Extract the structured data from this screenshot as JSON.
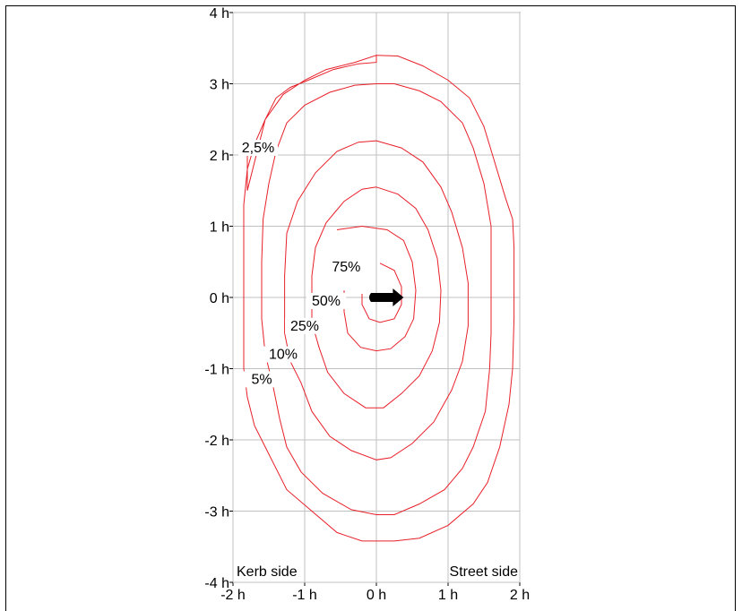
{
  "chart_data": {
    "type": "contour",
    "xlim": [
      -2,
      2
    ],
    "ylim": [
      -4,
      4
    ],
    "x_ticks": [
      {
        "value": -2,
        "label": "-2 h"
      },
      {
        "value": -1,
        "label": "-1 h"
      },
      {
        "value": 0,
        "label": "0 h"
      },
      {
        "value": 1,
        "label": "1 h"
      },
      {
        "value": 2,
        "label": "2 h"
      }
    ],
    "y_ticks": [
      {
        "value": 4,
        "label": "4 h"
      },
      {
        "value": 3,
        "label": "3 h"
      },
      {
        "value": 2,
        "label": "2 h"
      },
      {
        "value": 1,
        "label": "1 h"
      },
      {
        "value": 0,
        "label": "0 h"
      },
      {
        "value": -1,
        "label": "-1 h"
      },
      {
        "value": -2,
        "label": "-2 h"
      },
      {
        "value": -3,
        "label": "-3 h"
      },
      {
        "value": -4,
        "label": "-4 h"
      }
    ],
    "grid": true,
    "side_labels": {
      "left": "Kerb side",
      "right": "Street side"
    },
    "contour_color": "#e8202a",
    "contours": [
      {
        "level": "2,5%",
        "label_at": [
          -1.65,
          2.05
        ],
        "points": [
          [
            0,
            3.4
          ],
          [
            0.3,
            3.39
          ],
          [
            0.65,
            3.25
          ],
          [
            1.0,
            3.05
          ],
          [
            1.3,
            2.8
          ],
          [
            1.5,
            2.4
          ],
          [
            1.62,
            2.0
          ],
          [
            1.8,
            1.4
          ],
          [
            1.9,
            1.1
          ],
          [
            1.92,
            0.7
          ],
          [
            1.92,
            -0.3
          ],
          [
            1.9,
            -1.0
          ],
          [
            1.85,
            -1.5
          ],
          [
            1.72,
            -2.1
          ],
          [
            1.55,
            -2.6
          ],
          [
            1.35,
            -2.9
          ],
          [
            1.0,
            -3.2
          ],
          [
            0.6,
            -3.38
          ],
          [
            0.25,
            -3.42
          ],
          [
            -0.2,
            -3.42
          ],
          [
            -0.55,
            -3.3
          ],
          [
            -0.9,
            -3.0
          ],
          [
            -1.25,
            -2.7
          ],
          [
            -1.5,
            -2.2
          ],
          [
            -1.7,
            -1.8
          ],
          [
            -1.8,
            -1.4
          ],
          [
            -1.85,
            -1.0
          ]
        ]
      },
      {
        "level": "5%",
        "label_at": [
          -1.6,
          -1.2
        ],
        "points": [
          [
            -1.8,
            2.0
          ],
          [
            -1.8,
            1.5
          ],
          [
            -1.6,
            2.3
          ],
          [
            -1.55,
            2.5
          ],
          [
            -1.4,
            2.8
          ],
          [
            -1.2,
            2.95
          ],
          [
            -0.95,
            3.05
          ],
          [
            -0.6,
            3.2
          ],
          [
            -0.25,
            3.28
          ],
          [
            0,
            3.3
          ],
          [
            0,
            3.4
          ],
          [
            -0.3,
            3.3
          ],
          [
            -0.7,
            3.2
          ],
          [
            -1.0,
            3.05
          ],
          [
            -1.3,
            2.85
          ],
          [
            -1.55,
            2.5
          ],
          [
            -1.7,
            2.15
          ],
          [
            -1.8,
            1.8
          ],
          [
            -1.85,
            1.3
          ],
          [
            -1.85,
            0.6
          ],
          [
            -1.85,
            -0.5
          ],
          [
            -1.85,
            -1.0
          ]
        ]
      },
      {
        "level": "10%",
        "label_at": [
          -1.3,
          -0.85
        ],
        "points": [
          [
            0,
            3.0
          ],
          [
            0.25,
            3.0
          ],
          [
            0.6,
            2.9
          ],
          [
            0.9,
            2.75
          ],
          [
            1.2,
            2.45
          ],
          [
            1.35,
            2.1
          ],
          [
            1.5,
            1.6
          ],
          [
            1.6,
            1.0
          ],
          [
            1.6,
            0.5
          ],
          [
            1.6,
            -0.5
          ],
          [
            1.58,
            -1.0
          ],
          [
            1.52,
            -1.6
          ],
          [
            1.35,
            -2.1
          ],
          [
            1.2,
            -2.4
          ],
          [
            0.95,
            -2.7
          ],
          [
            0.6,
            -2.9
          ],
          [
            0.25,
            -3.05
          ],
          [
            0,
            -3.05
          ],
          [
            -0.35,
            -2.98
          ],
          [
            -0.75,
            -2.75
          ],
          [
            -1.05,
            -2.45
          ],
          [
            -1.25,
            -2.1
          ],
          [
            -1.35,
            -1.7
          ],
          [
            -1.45,
            -1.2
          ],
          [
            -1.55,
            -0.8
          ],
          [
            -1.6,
            -0.3
          ],
          [
            -1.6,
            0.5
          ],
          [
            -1.58,
            1.1
          ],
          [
            -1.5,
            1.6
          ],
          [
            -1.4,
            2.05
          ],
          [
            -1.25,
            2.45
          ],
          [
            -1.0,
            2.7
          ],
          [
            -0.65,
            2.88
          ],
          [
            -0.3,
            2.98
          ],
          [
            0,
            3.0
          ]
        ]
      },
      {
        "level": "25%",
        "label_at": [
          -1.0,
          -0.45
        ],
        "points": [
          [
            0,
            2.2
          ],
          [
            0.35,
            2.1
          ],
          [
            0.65,
            1.9
          ],
          [
            0.9,
            1.55
          ],
          [
            1.05,
            1.2
          ],
          [
            1.2,
            0.7
          ],
          [
            1.28,
            0.2
          ],
          [
            1.28,
            -0.4
          ],
          [
            1.2,
            -0.9
          ],
          [
            1.05,
            -1.3
          ],
          [
            0.8,
            -1.75
          ],
          [
            0.5,
            -2.05
          ],
          [
            0.2,
            -2.25
          ],
          [
            0,
            -2.28
          ],
          [
            -0.35,
            -2.15
          ],
          [
            -0.65,
            -1.95
          ],
          [
            -0.9,
            -1.6
          ],
          [
            -1.05,
            -1.2
          ],
          [
            -1.2,
            -0.9
          ],
          [
            -1.28,
            -0.5
          ],
          [
            -1.28,
            0.3
          ],
          [
            -1.25,
            0.9
          ],
          [
            -1.1,
            1.35
          ],
          [
            -0.85,
            1.75
          ],
          [
            -0.55,
            2.05
          ],
          [
            -0.25,
            2.18
          ],
          [
            0,
            2.2
          ]
        ]
      },
      {
        "level": "50%",
        "label_at": [
          -0.7,
          -0.1
        ],
        "points": [
          [
            0,
            1.55
          ],
          [
            0.3,
            1.45
          ],
          [
            0.55,
            1.25
          ],
          [
            0.72,
            0.95
          ],
          [
            0.85,
            0.55
          ],
          [
            0.9,
            0.1
          ],
          [
            0.88,
            -0.35
          ],
          [
            0.78,
            -0.75
          ],
          [
            0.6,
            -1.1
          ],
          [
            0.35,
            -1.35
          ],
          [
            0.1,
            -1.55
          ],
          [
            -0.15,
            -1.55
          ],
          [
            -0.45,
            -1.35
          ],
          [
            -0.68,
            -1.05
          ],
          [
            -0.8,
            -0.7
          ],
          [
            -0.9,
            -0.35
          ],
          [
            -0.9,
            0.3
          ],
          [
            -0.85,
            0.7
          ],
          [
            -0.7,
            1.05
          ],
          [
            -0.45,
            1.35
          ],
          [
            -0.2,
            1.52
          ],
          [
            0,
            1.55
          ]
        ]
      },
      {
        "level": "75%",
        "label_at": [
          -0.42,
          0.38
        ],
        "points": [
          [
            -0.55,
            0.95
          ],
          [
            -0.2,
            1.0
          ],
          [
            0.15,
            0.95
          ],
          [
            0.38,
            0.8
          ],
          [
            0.5,
            0.5
          ],
          [
            0.55,
            0.1
          ],
          [
            0.52,
            -0.3
          ],
          [
            0.4,
            -0.55
          ],
          [
            0.2,
            -0.72
          ],
          [
            0,
            -0.75
          ],
          [
            -0.22,
            -0.7
          ],
          [
            -0.4,
            -0.5
          ],
          [
            -0.45,
            -0.2
          ],
          [
            -0.45,
            0.1
          ]
        ]
      },
      {
        "level": "",
        "label_at": null,
        "points": [
          [
            0.05,
            0.48
          ],
          [
            0.25,
            0.38
          ],
          [
            0.35,
            0.15
          ],
          [
            0.35,
            -0.1
          ],
          [
            0.25,
            -0.3
          ],
          [
            0.05,
            -0.35
          ],
          [
            -0.1,
            -0.3
          ],
          [
            -0.2,
            -0.1
          ],
          [
            -0.2,
            0.05
          ]
        ]
      }
    ],
    "arrow": {
      "x_from": 0,
      "x_to": 0.38,
      "y": 0
    }
  }
}
